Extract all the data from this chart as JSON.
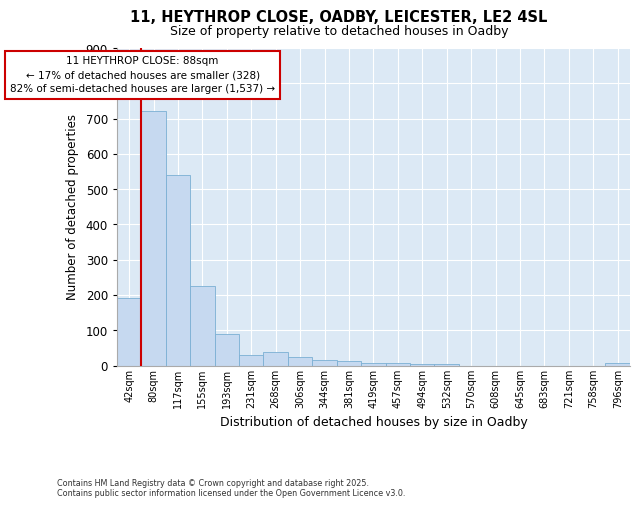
{
  "title_line1": "11, HEYTHROP CLOSE, OADBY, LEICESTER, LE2 4SL",
  "title_line2": "Size of property relative to detached houses in Oadby",
  "xlabel": "Distribution of detached houses by size in Oadby",
  "ylabel": "Number of detached properties",
  "bin_labels": [
    "42sqm",
    "80sqm",
    "117sqm",
    "155sqm",
    "193sqm",
    "231sqm",
    "268sqm",
    "306sqm",
    "344sqm",
    "381sqm",
    "419sqm",
    "457sqm",
    "494sqm",
    "532sqm",
    "570sqm",
    "608sqm",
    "645sqm",
    "683sqm",
    "721sqm",
    "758sqm",
    "796sqm"
  ],
  "bar_heights": [
    190,
    720,
    540,
    225,
    90,
    30,
    38,
    25,
    15,
    12,
    8,
    8,
    5,
    5,
    0,
    0,
    0,
    0,
    0,
    0,
    8
  ],
  "bar_color": "#c6d9f0",
  "bar_edge_color": "#7bafd4",
  "red_line_color": "#cc0000",
  "red_line_x": 0.5,
  "annotation_text": "11 HEYTHROP CLOSE: 88sqm\n← 17% of detached houses are smaller (328)\n82% of semi-detached houses are larger (1,537) →",
  "annotation_box_facecolor": "#ffffff",
  "annotation_box_edgecolor": "#cc0000",
  "ylim": [
    0,
    900
  ],
  "yticks": [
    0,
    100,
    200,
    300,
    400,
    500,
    600,
    700,
    800,
    900
  ],
  "grid_color": "#ffffff",
  "footnote": "Contains HM Land Registry data © Crown copyright and database right 2025.\nContains public sector information licensed under the Open Government Licence v3.0.",
  "fig_bg_color": "#ffffff",
  "plot_bg_color": "#dce9f5"
}
